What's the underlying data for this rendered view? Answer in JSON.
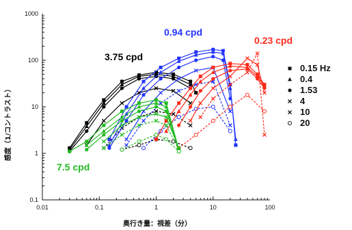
{
  "chart_data": {
    "type": "line",
    "xlabel": "奥行き量：視差（分）",
    "ylabel": "感度（1/コントラスト）",
    "xscale": "log",
    "yscale": "log",
    "xlim": [
      0.01,
      100
    ],
    "ylim": [
      0.1,
      1000
    ],
    "xticks": [
      "0.01",
      "0.1",
      "1",
      "10",
      "100"
    ],
    "yticks": [
      "1000",
      "100",
      "10",
      "1",
      "0.1"
    ],
    "grid": false,
    "legend": {
      "position": "right",
      "entries": [
        {
          "marker": "square",
          "label": "0.15 Hz"
        },
        {
          "marker": "triangle",
          "label": "0.4"
        },
        {
          "marker": "circle",
          "label": "1.53"
        },
        {
          "marker": "x",
          "label": "4"
        },
        {
          "marker": "x",
          "label": "10"
        },
        {
          "marker": "open-circle",
          "label": "20"
        }
      ]
    },
    "annotations": [
      {
        "text": "0.94 cpd",
        "color": "#2233ff"
      },
      {
        "text": "0.23 cpd",
        "color": "#ff2a1a"
      },
      {
        "text": "3.75 cpd",
        "color": "#000000"
      },
      {
        "text": "7.5 cpd",
        "color": "#22bb22"
      }
    ],
    "series": [
      {
        "group": "3.75 cpd",
        "color": "#000000",
        "marker": "square",
        "x": [
          0.03,
          0.06,
          0.12,
          0.25,
          0.5,
          1,
          2,
          4,
          5
        ],
        "y": [
          1.3,
          4.5,
          14,
          35,
          48,
          55,
          50,
          35,
          20
        ]
      },
      {
        "group": "3.75 cpd",
        "color": "#000000",
        "marker": "triangle",
        "x": [
          0.03,
          0.06,
          0.12,
          0.25,
          0.5,
          1,
          2,
          4
        ],
        "y": [
          1.2,
          3.8,
          12,
          30,
          45,
          50,
          45,
          30
        ]
      },
      {
        "group": "3.75 cpd",
        "color": "#000000",
        "marker": "circle",
        "x": [
          0.03,
          0.06,
          0.12,
          0.25,
          0.5,
          1,
          2,
          4
        ],
        "y": [
          1.1,
          3.0,
          10,
          25,
          40,
          45,
          40,
          25
        ]
      },
      {
        "group": "3.75 cpd",
        "color": "#000000",
        "marker": "x",
        "x": [
          0.06,
          0.12,
          0.25,
          0.5,
          1,
          2,
          4
        ],
        "y": [
          1.5,
          5,
          12,
          20,
          25,
          22,
          12
        ]
      },
      {
        "group": "3.75 cpd",
        "color": "#000000",
        "marker": "x",
        "x": [
          0.12,
          0.25,
          0.5,
          1,
          2,
          4
        ],
        "y": [
          1.3,
          3.5,
          6,
          8,
          7,
          4
        ]
      },
      {
        "group": "3.75 cpd",
        "color": "#000000",
        "marker": "open-circle",
        "x": [
          0.25,
          0.5,
          1,
          2,
          4
        ],
        "y": [
          1.2,
          1.5,
          2,
          1.8,
          1.3
        ]
      },
      {
        "group": "0.94 cpd",
        "color": "#2233ff",
        "marker": "square",
        "x": [
          0.15,
          0.3,
          0.6,
          1.2,
          2.5,
          5,
          10,
          15,
          20,
          25
        ],
        "y": [
          2,
          10,
          35,
          70,
          110,
          150,
          170,
          160,
          30,
          1.5
        ]
      },
      {
        "group": "0.94 cpd",
        "color": "#2233ff",
        "marker": "triangle",
        "x": [
          0.15,
          0.3,
          0.6,
          1.2,
          2.5,
          5,
          10,
          15,
          20,
          25
        ],
        "y": [
          1.5,
          7,
          25,
          55,
          95,
          130,
          150,
          140,
          25,
          2
        ]
      },
      {
        "group": "0.94 cpd",
        "color": "#2233ff",
        "marker": "circle",
        "x": [
          0.15,
          0.3,
          0.6,
          1.2,
          2.5,
          5,
          10,
          15,
          20
        ],
        "y": [
          1.3,
          5,
          18,
          40,
          70,
          100,
          120,
          100,
          15
        ]
      },
      {
        "group": "0.94 cpd",
        "color": "#2233ff",
        "marker": "x",
        "x": [
          0.3,
          0.6,
          1.2,
          2.5,
          5,
          10,
          20
        ],
        "y": [
          2,
          8,
          20,
          40,
          60,
          70,
          8
        ]
      },
      {
        "group": "0.94 cpd",
        "color": "#2233ff",
        "marker": "x",
        "x": [
          0.3,
          0.6,
          1.2,
          2.5,
          5,
          10,
          20
        ],
        "y": [
          1.5,
          5,
          12,
          22,
          30,
          35,
          4
        ]
      },
      {
        "group": "0.94 cpd",
        "color": "#2233ff",
        "marker": "open-circle",
        "x": [
          0.6,
          1.2,
          2.5,
          5,
          10,
          20
        ],
        "y": [
          1.3,
          3,
          6,
          9,
          10,
          3
        ]
      },
      {
        "group": "0.23 cpd",
        "color": "#ff2a1a",
        "marker": "square",
        "x": [
          1,
          1.5,
          2.5,
          4,
          6,
          10,
          20,
          40,
          60,
          80
        ],
        "y": [
          2,
          5,
          12,
          25,
          45,
          70,
          85,
          80,
          50,
          30
        ]
      },
      {
        "group": "0.23 cpd",
        "color": "#ff2a1a",
        "marker": "triangle",
        "x": [
          1.5,
          2.5,
          4,
          6,
          10,
          20,
          40,
          60,
          80
        ],
        "y": [
          3,
          8,
          18,
          35,
          55,
          75,
          70,
          45,
          28
        ]
      },
      {
        "group": "0.23 cpd",
        "color": "#ff2a1a",
        "marker": "circle",
        "x": [
          2.5,
          4,
          6,
          10,
          20,
          40,
          60,
          80
        ],
        "y": [
          4,
          10,
          22,
          40,
          60,
          65,
          40,
          25
        ]
      },
      {
        "group": "0.23 cpd",
        "color": "#ff2a1a",
        "marker": "x",
        "x": [
          4,
          6,
          10,
          20,
          40,
          60,
          80
        ],
        "y": [
          5,
          12,
          25,
          45,
          110,
          80,
          20
        ]
      },
      {
        "group": "0.23 cpd",
        "color": "#ff2a1a",
        "marker": "x",
        "x": [
          6,
          10,
          20,
          40,
          60,
          80
        ],
        "y": [
          6,
          15,
          30,
          55,
          140,
          2.5
        ]
      },
      {
        "group": "0.23 cpd",
        "color": "#ff2a1a",
        "marker": "open-circle",
        "x": [
          2.5,
          5,
          10,
          20,
          40,
          80
        ],
        "y": [
          1.3,
          2.5,
          5,
          10,
          18,
          8
        ]
      },
      {
        "group": "7.5 cpd",
        "color": "#22bb22",
        "marker": "square",
        "x": [
          0.03,
          0.06,
          0.12,
          0.25,
          0.5,
          1,
          1.5,
          2.5
        ],
        "y": [
          1.1,
          1.8,
          4,
          8,
          12,
          14,
          12,
          1.2
        ]
      },
      {
        "group": "7.5 cpd",
        "color": "#22bb22",
        "marker": "triangle",
        "x": [
          0.06,
          0.12,
          0.25,
          0.5,
          1,
          1.5,
          2.5
        ],
        "y": [
          1.5,
          3,
          6,
          10,
          12,
          10,
          1.1
        ]
      },
      {
        "group": "7.5 cpd",
        "color": "#22bb22",
        "marker": "circle",
        "x": [
          0.06,
          0.12,
          0.25,
          0.5,
          1,
          1.5,
          2.5
        ],
        "y": [
          1.2,
          2.5,
          5,
          8,
          10,
          8,
          1.2
        ]
      },
      {
        "group": "7.5 cpd",
        "color": "#22bb22",
        "marker": "x",
        "x": [
          0.12,
          0.25,
          0.5,
          1,
          1.5,
          2.5
        ],
        "y": [
          1.8,
          4,
          6,
          7,
          6,
          1.3
        ]
      },
      {
        "group": "7.5 cpd",
        "color": "#22bb22",
        "marker": "x",
        "x": [
          0.12,
          0.25,
          0.5,
          1,
          1.5,
          2.5
        ],
        "y": [
          1.3,
          2.5,
          4,
          5,
          4,
          1.2
        ]
      },
      {
        "group": "7.5 cpd",
        "color": "#22bb22",
        "marker": "open-circle",
        "x": [
          0.25,
          0.5,
          1,
          1.5,
          2.5
        ],
        "y": [
          1.2,
          1.8,
          2.5,
          2,
          1.1
        ]
      }
    ]
  }
}
